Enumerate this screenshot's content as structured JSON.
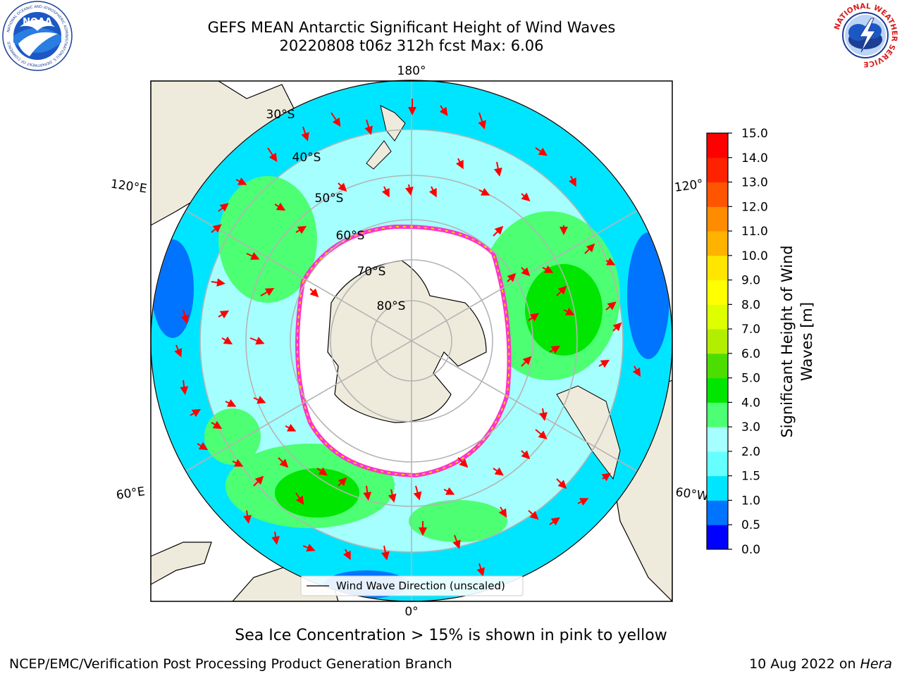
{
  "header": {
    "title_line1": "GEFS MEAN Antarctic Significant Height of Wind Waves",
    "title_line2": "20220808 t06z 312h fcst   Max: 6.06"
  },
  "logos": {
    "left": "noaa-logo",
    "right": "nws-logo",
    "left_ring_text": "NATIONAL OCEANIC AND ATMOSPHERIC ADMINISTRATION",
    "left_lower_text": "U.S. DEPARTMENT OF COMMERCE",
    "left_center_text": "NOAA",
    "right_ring_text": "NATIONAL WEATHER SERVICE"
  },
  "map": {
    "projection": "south-polar-stereographic",
    "longitude_labels": [
      "180°",
      "120°E",
      "120°",
      "60°E",
      "60°W",
      "0°"
    ],
    "latitude_labels": [
      "30°S",
      "40°S",
      "50°S",
      "60°S",
      "70°S",
      "80°S"
    ],
    "legend_label": "Wind Wave Direction (unscaled)",
    "arrow_color": "#ff0000",
    "land_color": "#efebdc",
    "ice_edge_colors": [
      "#ff33cc",
      "#ffcc00"
    ]
  },
  "colorbar": {
    "label_line1": "Significant Height of Wind",
    "label_line2": "Waves [m]",
    "ticks": [
      "0.0",
      "0.5",
      "1.0",
      "1.5",
      "2.0",
      "3.0",
      "4.0",
      "5.0",
      "6.0",
      "7.0",
      "8.0",
      "9.0",
      "10.0",
      "11.0",
      "12.0",
      "13.0",
      "14.0",
      "15.0"
    ],
    "colors": [
      "#0000ff",
      "#0073ff",
      "#00e5ff",
      "#66ffff",
      "#a6ffff",
      "#4dff73",
      "#00e600",
      "#4ddd00",
      "#b3ee00",
      "#ddff00",
      "#ffff00",
      "#ffe600",
      "#ffb300",
      "#ff8c00",
      "#ff5500",
      "#ff2200",
      "#ff0000"
    ]
  },
  "notes": {
    "ice_note": "Sea Ice Concentration > 15% is shown in pink to yellow"
  },
  "footer": {
    "left": "NCEP/EMC/Verification Post Processing Product Generation Branch",
    "right_prefix": "10 Aug 2022 on ",
    "right_host": "Hera"
  }
}
